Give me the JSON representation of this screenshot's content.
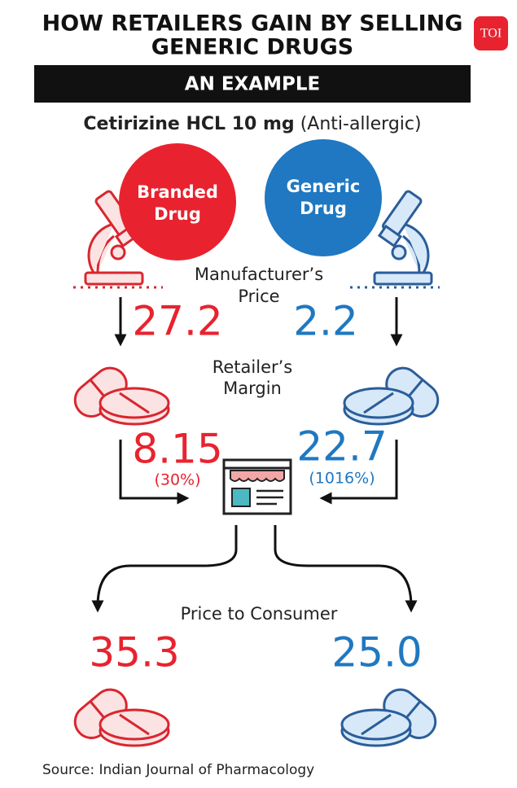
{
  "header": {
    "title": [
      "HOW RETAILERS GAIN BY SELLING",
      "GENERIC DRUGS"
    ],
    "logo": "TOI",
    "banner": "AN EXAMPLE"
  },
  "drug": {
    "name": "Cetirizine HCL 10 mg",
    "class": "(Anti-allergic)"
  },
  "rows": [
    {
      "label": [
        "Manufacturer’s",
        "Price"
      ]
    },
    {
      "label": [
        "Retailer’s",
        "Margin"
      ]
    },
    {
      "label": "Price to Consumer"
    }
  ],
  "columns": [
    {
      "label": [
        "Branded",
        "Drug"
      ],
      "manufacturer_price": "27.2",
      "retailer_margin": "8.15",
      "margin_percent": "(30%)",
      "consumer_price": "35.3"
    },
    {
      "label": [
        "Generic",
        "Drug"
      ],
      "manufacturer_price": "2.2",
      "retailer_margin": "22.7",
      "margin_percent": "(1016%)",
      "consumer_price": "25.0"
    }
  ],
  "footer": {
    "source": "Source: Indian Journal of Pharmacology"
  }
}
